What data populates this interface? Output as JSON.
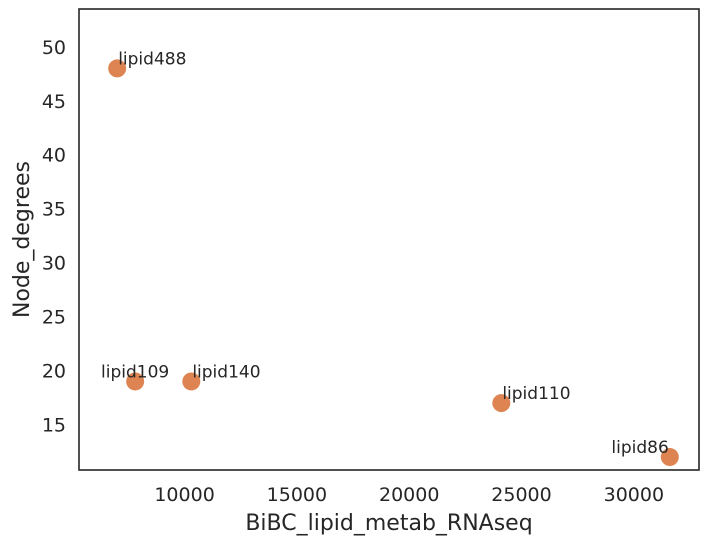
{
  "chart_data": {
    "type": "scatter",
    "title": "",
    "xlabel": "BiBC_lipid_metab_RNAseq",
    "ylabel": "Node_degrees",
    "xlim": [
      5300,
      32900
    ],
    "ylim": [
      10.8,
      53.5
    ],
    "x_ticks": [
      10000,
      15000,
      20000,
      25000,
      30000
    ],
    "y_ticks": [
      15,
      20,
      25,
      30,
      35,
      40,
      45,
      50
    ],
    "grid": false,
    "marker_color": "#dd8452",
    "points": [
      {
        "label": "lipid488",
        "x": 7000,
        "y": 48
      },
      {
        "label": "lipid109",
        "x": 7800,
        "y": 19
      },
      {
        "label": "lipid140",
        "x": 10300,
        "y": 19
      },
      {
        "label": "lipid110",
        "x": 24100,
        "y": 17
      },
      {
        "label": "lipid86",
        "x": 31600,
        "y": 12
      }
    ]
  }
}
